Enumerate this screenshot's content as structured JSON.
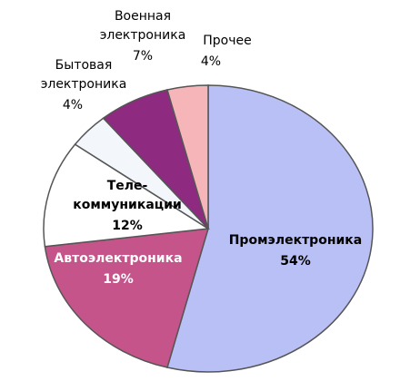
{
  "chart_data": {
    "type": "pie",
    "categories": [
      "Промэлектроника",
      "Автоэлектроника",
      "Теле-\nкоммуникации",
      "Бытовая\nэлектроника",
      "Военная\nэлектроника",
      "Прочее"
    ],
    "values": [
      54,
      19,
      12,
      4,
      7,
      4
    ],
    "value_labels": [
      "54%",
      "19%",
      "12%",
      "4%",
      "7%",
      "4%"
    ],
    "colors": [
      "#b9c0f5",
      "#c4548a",
      "#ffffff",
      "#f3f7fc",
      "#8e2a80",
      "#f6b5b8"
    ]
  }
}
